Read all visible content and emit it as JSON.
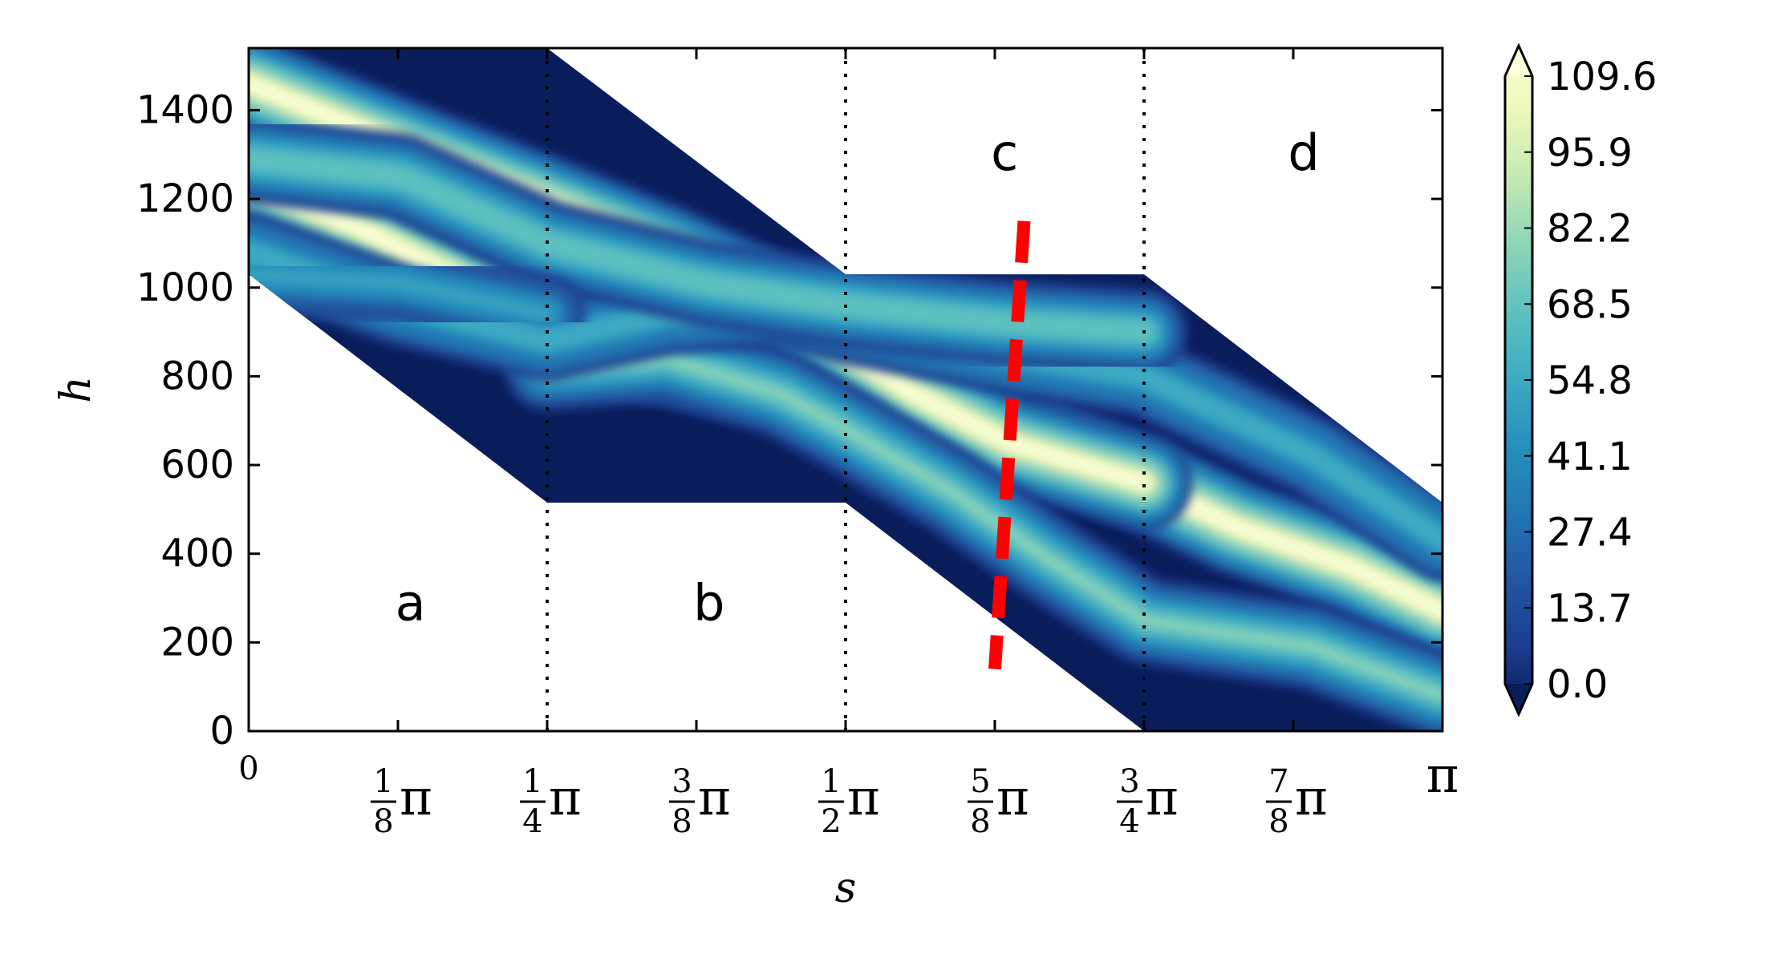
{
  "chart_data": {
    "type": "heatmap",
    "xlabel": "s",
    "ylabel": "h",
    "xlim": [
      0,
      3.14159
    ],
    "ylim": [
      0,
      1540
    ],
    "y_ticks": [
      0,
      200,
      400,
      600,
      800,
      1000,
      1200,
      1400
    ],
    "x_ticks": [
      {
        "value": 0,
        "num": "",
        "den": "",
        "text": "0"
      },
      {
        "value": 0.3927,
        "num": "1",
        "den": "8",
        "text": "π"
      },
      {
        "value": 0.7854,
        "num": "1",
        "den": "4",
        "text": "π"
      },
      {
        "value": 1.1781,
        "num": "3",
        "den": "8",
        "text": "π"
      },
      {
        "value": 1.5708,
        "num": "1",
        "den": "2",
        "text": "π"
      },
      {
        "value": 1.9635,
        "num": "5",
        "den": "8",
        "text": "π"
      },
      {
        "value": 2.3562,
        "num": "3",
        "den": "4",
        "text": "π"
      },
      {
        "value": 2.7489,
        "num": "7",
        "den": "8",
        "text": "π"
      },
      {
        "value": 3.14159,
        "num": "",
        "den": "",
        "text": "π"
      }
    ],
    "region_boundaries": [
      0.7854,
      1.5708,
      2.3562
    ],
    "regions": [
      {
        "label": "a",
        "x": 0.4256,
        "y": 290
      },
      {
        "label": "b",
        "x": 1.2114,
        "y": 290
      },
      {
        "label": "c",
        "x": 1.9893,
        "y": 1305
      },
      {
        "label": "d",
        "x": 2.7765,
        "y": 1305
      }
    ],
    "domain_polygon": [
      [
        0,
        1540
      ],
      [
        0.7854,
        1540
      ],
      [
        1.5708,
        1030
      ],
      [
        2.3562,
        1030
      ],
      [
        3.14159,
        515
      ],
      [
        3.14159,
        0
      ],
      [
        2.3562,
        0
      ],
      [
        1.5708,
        515
      ],
      [
        0.7854,
        515
      ],
      [
        0,
        1030
      ]
    ],
    "ridges": [
      {
        "peak": 109.6,
        "width": 38,
        "points": [
          [
            0,
            1240
          ],
          [
            0.3,
            1130
          ],
          [
            0.7854,
            920
          ],
          [
            1.0,
            860
          ],
          [
            1.4,
            790
          ],
          [
            1.5708,
            745
          ],
          [
            1.8,
            690
          ],
          [
            2.1,
            640
          ],
          [
            2.3562,
            560
          ],
          [
            2.6,
            460
          ],
          [
            2.9,
            370
          ],
          [
            3.14159,
            270
          ]
        ]
      },
      {
        "peak": 109.6,
        "width": 38,
        "points": [
          [
            0,
            1460
          ],
          [
            0.4,
            1320
          ],
          [
            0.7854,
            1190
          ],
          [
            1.1,
            1080
          ],
          [
            1.4,
            960
          ],
          [
            1.5708,
            860
          ],
          [
            1.75,
            760
          ],
          [
            2.0,
            650
          ],
          [
            2.3562,
            560
          ]
        ]
      },
      {
        "peak": 82,
        "width": 34,
        "points": [
          [
            0.7854,
            820
          ],
          [
            1.1,
            840
          ],
          [
            1.4,
            760
          ],
          [
            1.5708,
            680
          ],
          [
            1.85,
            540
          ],
          [
            2.1,
            390
          ],
          [
            2.3562,
            250
          ],
          [
            2.5,
            230
          ],
          [
            2.8,
            190
          ],
          [
            3.14159,
            80
          ]
        ]
      },
      {
        "peak": 60,
        "width": 32,
        "points": [
          [
            0,
            1080
          ],
          [
            0.4,
            960
          ],
          [
            0.7854,
            880
          ],
          [
            1.1,
            940
          ],
          [
            1.4,
            960
          ],
          [
            1.5708,
            920
          ],
          [
            2.0,
            850
          ],
          [
            2.3562,
            800
          ],
          [
            2.8,
            620
          ],
          [
            3.14159,
            430
          ]
        ]
      },
      {
        "peak": 70,
        "width": 34,
        "points": [
          [
            0,
            1290
          ],
          [
            0.4,
            1250
          ],
          [
            0.7854,
            1100
          ],
          [
            1.2,
            1010
          ],
          [
            1.5708,
            960
          ],
          [
            2.0,
            920
          ],
          [
            2.3562,
            900
          ]
        ]
      },
      {
        "peak": 55,
        "width": 30,
        "points": [
          [
            0,
            1030
          ],
          [
            0.4,
            1010
          ],
          [
            0.7854,
            940
          ]
        ]
      }
    ],
    "red_line": {
      "style": "dashed",
      "color": "#ff0000",
      "points": [
        [
          2.0406,
          1150
        ],
        [
          1.9635,
          140
        ]
      ]
    },
    "colorbar": {
      "min": 0.0,
      "max": 109.6,
      "tick_labels": [
        "0.0",
        "13.7",
        "27.4",
        "41.1",
        "54.8",
        "68.5",
        "82.2",
        "95.9",
        "109.6"
      ],
      "colormap": [
        "#0a1d5b",
        "#1b3c8f",
        "#22579f",
        "#2176b3",
        "#2590bd",
        "#3cabc3",
        "#5dc1c0",
        "#8cd4b8",
        "#c2e9b3",
        "#edf8b9",
        "#fcfed9"
      ],
      "extend": "both"
    },
    "grid": false,
    "legend": "none"
  }
}
